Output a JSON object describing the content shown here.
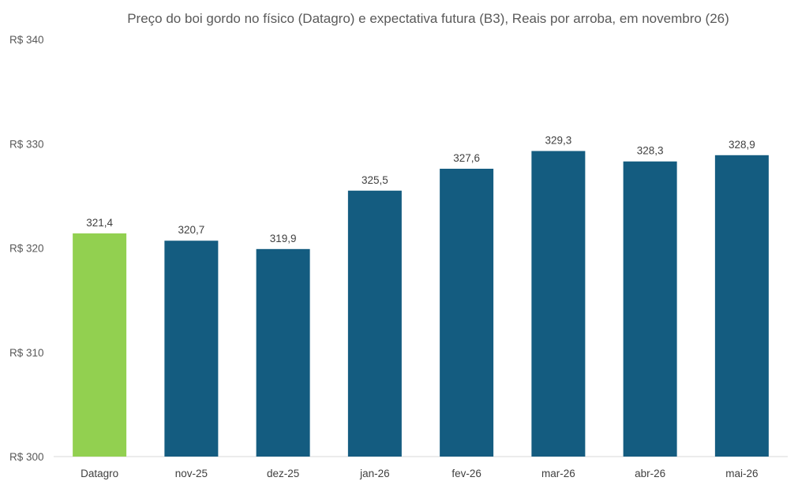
{
  "chart_data": {
    "type": "bar",
    "title": "Preço do boi gordo no físico (Datagro)  e expectativa futura (B3), Reais por arroba, em novembro (26)",
    "xlabel": "",
    "ylabel": "",
    "categories": [
      "Datagro",
      "nov-25",
      "dez-25",
      "jan-26",
      "fev-26",
      "mar-26",
      "abr-26",
      "mai-26"
    ],
    "values": [
      321.4,
      320.7,
      319.9,
      325.5,
      327.6,
      329.3,
      328.3,
      328.9
    ],
    "value_labels": [
      "321,4",
      "320,7",
      "319,9",
      "325,5",
      "327,6",
      "329,3",
      "328,3",
      "328,9"
    ],
    "ylim": [
      300,
      340
    ],
    "yticks": [
      300,
      310,
      320,
      330,
      340
    ],
    "ytick_labels": [
      "R$ 300",
      "R$ 310",
      "R$ 320",
      "R$ 330",
      "R$ 340"
    ],
    "grid": false,
    "legend": "none",
    "colors": {
      "highlight": "#92d050",
      "series": "#145c80",
      "axis": "#d9d9d9"
    }
  }
}
